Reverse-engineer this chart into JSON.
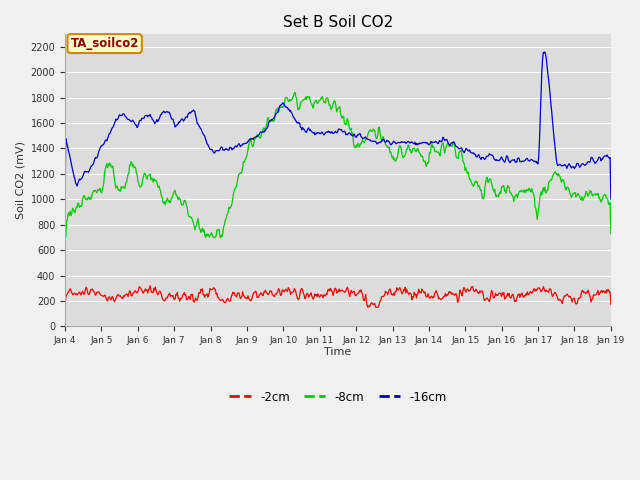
{
  "title": "Set B Soil CO2",
  "ylabel": "Soil CO2 (mV)",
  "xlabel": "Time",
  "annotation": "TA_soilco2",
  "fig_bg_color": "#f0f0f0",
  "plot_bg_color": "#dcdcdc",
  "ylim": [
    0,
    2300
  ],
  "yticks": [
    0,
    200,
    400,
    600,
    800,
    1000,
    1200,
    1400,
    1600,
    1800,
    2000,
    2200
  ],
  "line_colors": {
    "shallow": "#ff0000",
    "mid": "#00cc00",
    "deep": "#0000cc"
  },
  "legend_labels": [
    "-2cm",
    "-8cm",
    "-16cm"
  ],
  "x_tick_labels": [
    "Jan 4",
    "Jan 5",
    "Jan 6",
    "Jan 7",
    "Jan 8",
    "Jan 9",
    "Jan 10",
    "Jan 11",
    "Jan 12",
    "Jan 13",
    "Jan 14",
    "Jan 15",
    "Jan 16",
    "Jan 17",
    "Jan 18",
    "Jan 19"
  ]
}
